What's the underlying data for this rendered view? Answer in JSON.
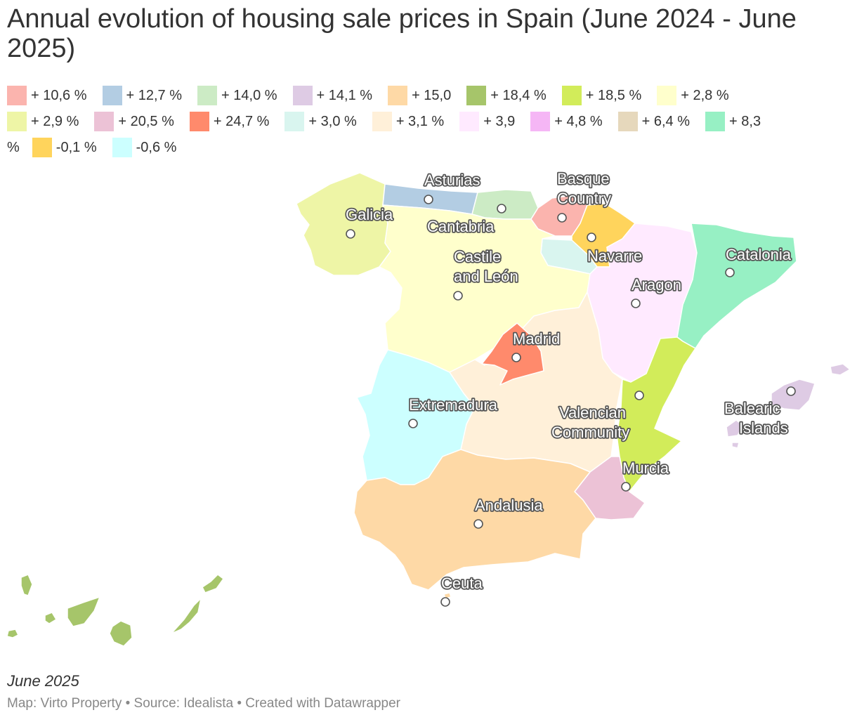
{
  "title": "Annual evolution of housing sale prices in Spain (June 2024 - June 2025)",
  "legend": [
    {
      "label": "+ 10,6 %",
      "color": "#fbb4ae"
    },
    {
      "label": "+ 12,7 %",
      "color": "#b3cde3"
    },
    {
      "label": "+ 14,0 %",
      "color": "#ccebc5"
    },
    {
      "label": "+ 14,1 %",
      "color": "#decbe4"
    },
    {
      "label": "+ 15,0",
      "color": "#fed9a6"
    },
    {
      "label": "+ 18,4 %",
      "color": "#a6c56a"
    },
    {
      "label": "+ 18,5 %",
      "color": "#d2ec5a"
    },
    {
      "label": "+ 2,8 %",
      "color": "#ffffcc"
    },
    {
      "label": "+ 2,9 %",
      "color": "#eef5a6"
    },
    {
      "label": "+ 20,5 %",
      "color": "#ecc2d6"
    },
    {
      "label": "+ 24,7 %",
      "color": "#ff8a6c"
    },
    {
      "label": "+ 3,0 %",
      "color": "#d9f5ef"
    },
    {
      "label": "+ 3,1 %",
      "color": "#fff0d9"
    },
    {
      "label": "+ 3,9",
      "color": "#ffeaff"
    },
    {
      "label": "+ 4,8 %",
      "color": "#f5b6f5"
    },
    {
      "label": "+ 6,4 %",
      "color": "#e6d8bc"
    },
    {
      "label": "+ 8,3",
      "color": "#97f0c4"
    },
    {
      "label": "%",
      "color": ""
    },
    {
      "label": "-0,1 %",
      "color": "#ffd45c"
    },
    {
      "label": "-0,6 %",
      "color": "#ccffff"
    }
  ],
  "regions": {
    "galicia": {
      "name": "Galicia",
      "color": "#eef5a6"
    },
    "asturias": {
      "name": "Asturias",
      "color": "#b3cde3"
    },
    "cantabria": {
      "name": "Cantabria",
      "color": "#ccebc5"
    },
    "basque": {
      "name": "Basque Country",
      "color": "#fbb4ae"
    },
    "navarre": {
      "name": "Navarre",
      "color": "#ffd45c"
    },
    "rioja": {
      "name": "",
      "color": "#d9f5ef"
    },
    "castile_leon": {
      "name": "Castile and León",
      "color": "#ffffcc"
    },
    "aragon": {
      "name": "Aragon",
      "color": "#ffeaff"
    },
    "catalonia": {
      "name": "Catalonia",
      "color": "#97f0c4"
    },
    "madrid": {
      "name": "Madrid",
      "color": "#ff8a6c"
    },
    "castilla_mancha": {
      "name": "",
      "color": "#fff0d9"
    },
    "extremadura": {
      "name": "Extremadura",
      "color": "#ccffff"
    },
    "valencia": {
      "name": "Valencian Community",
      "color": "#d2ec5a"
    },
    "murcia": {
      "name": "Murcia",
      "color": "#ecc2d6"
    },
    "andalusia": {
      "name": "Andalusia",
      "color": "#fed9a6"
    },
    "balearic": {
      "name": "Balearic Islands",
      "color": "#decbe4"
    },
    "canary": {
      "name": "",
      "color": "#a6c56a"
    },
    "ceuta": {
      "name": "Ceuta",
      "color": "#fed9a6"
    }
  },
  "labels": {
    "asturias": "Asturias",
    "galicia": "Galicia",
    "cantabria": "Cantabria",
    "basque_1": "Basque",
    "basque_2": "Country",
    "navarre": "Navarre",
    "castile_1": "Castile",
    "castile_2": "and León",
    "aragon": "Aragon",
    "catalonia": "Catalonia",
    "madrid": "Madrid",
    "extremadura": "Extremadura",
    "valencia_1": "Valencian",
    "valencia_2": "Community",
    "balearic_1": "Balearic",
    "balearic_2": "Islands",
    "murcia": "Murcia",
    "andalusia": "Andalusia",
    "ceuta": "Ceuta"
  },
  "date_note": "June 2025",
  "footer": "Map: Virto Property • Source: Idealista • Created with Datawrapper"
}
